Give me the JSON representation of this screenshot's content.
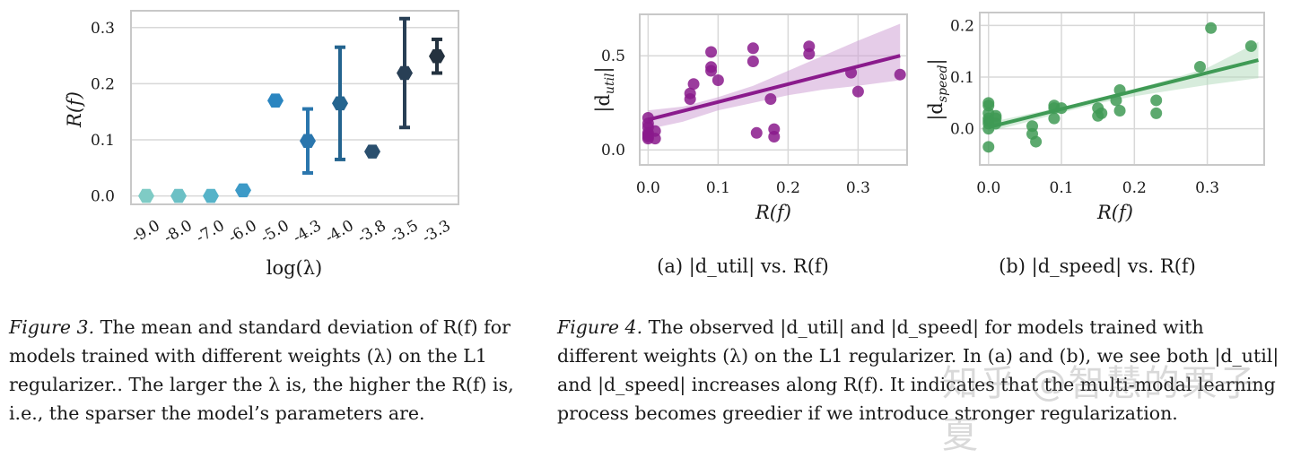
{
  "chart_data": [
    {
      "id": "fig3",
      "type": "scatter",
      "xlabel": "log(λ)",
      "ylabel": "R(f)",
      "categories": [
        "-9.0",
        "-8.0",
        "-7.0",
        "-6.0",
        "-5.0",
        "-4.3",
        "-4.0",
        "-3.8",
        "-3.5",
        "-3.3"
      ],
      "mean": [
        0.0,
        0.0,
        0.0,
        0.01,
        0.17,
        0.098,
        0.165,
        0.079,
        0.219,
        0.249
      ],
      "std": [
        0.0,
        0.0,
        0.0,
        0.0,
        0.0,
        0.057,
        0.1,
        0.0,
        0.097,
        0.03
      ],
      "colors": [
        "#7fcbc5",
        "#6cc0c5",
        "#56b3c8",
        "#3d9ac7",
        "#2a85c0",
        "#2a76ad",
        "#24648f",
        "#2a4f6e",
        "#283f55",
        "#24323f"
      ],
      "ylim": [
        -0.015,
        0.33
      ],
      "yticks": [
        "0.0",
        "0.1",
        "0.2",
        "0.3"
      ],
      "yticks_values": [
        0.0,
        0.1,
        0.2,
        0.3
      ],
      "grid": true
    },
    {
      "id": "fig4a",
      "type": "scatter",
      "xlabel": "R(f)",
      "ylabel": "|d_util|",
      "ylabel_base": "|d",
      "ylabel_sub": "util",
      "subcaption": "(a) |d_util| vs. R(f)",
      "color": "#8a1a8c",
      "band_color": "#cfa3d6",
      "x": [
        0.0,
        0.0,
        0.0,
        0.0,
        0.0,
        0.0,
        0.0,
        0.01,
        0.01,
        0.06,
        0.06,
        0.065,
        0.09,
        0.09,
        0.09,
        0.1,
        0.15,
        0.15,
        0.155,
        0.175,
        0.18,
        0.18,
        0.23,
        0.23,
        0.29,
        0.3,
        0.36
      ],
      "y": [
        0.17,
        0.14,
        0.12,
        0.09,
        0.08,
        0.07,
        0.06,
        0.1,
        0.06,
        0.3,
        0.27,
        0.35,
        0.52,
        0.44,
        0.42,
        0.37,
        0.54,
        0.47,
        0.09,
        0.27,
        0.11,
        0.07,
        0.55,
        0.51,
        0.41,
        0.31,
        0.4
      ],
      "fit": {
        "x": [
          0.0,
          0.36
        ],
        "y": [
          0.16,
          0.5
        ]
      },
      "band": {
        "x": [
          0.0,
          0.05,
          0.1,
          0.15,
          0.2,
          0.25,
          0.3,
          0.36
        ],
        "lower": [
          0.11,
          0.15,
          0.21,
          0.25,
          0.29,
          0.32,
          0.34,
          0.37
        ],
        "upper": [
          0.21,
          0.23,
          0.28,
          0.34,
          0.42,
          0.5,
          0.58,
          0.67
        ]
      },
      "xlim": [
        -0.012,
        0.37
      ],
      "ylim": [
        -0.08,
        0.72
      ],
      "xticks": [
        "0.0",
        "0.1",
        "0.2",
        "0.3"
      ],
      "xticks_values": [
        0.0,
        0.1,
        0.2,
        0.3
      ],
      "yticks": [
        "0.0",
        "0.5"
      ],
      "yticks_values": [
        0.0,
        0.5
      ],
      "grid": true
    },
    {
      "id": "fig4b",
      "type": "scatter",
      "xlabel": "R(f)",
      "ylabel": "|d_speed|",
      "ylabel_base": "|d",
      "ylabel_sub": "speed",
      "subcaption": "(b) |d_speed| vs. R(f)",
      "color": "#3f9a55",
      "band_color": "#b6dcc0",
      "x": [
        0.0,
        0.0,
        0.0,
        0.0,
        0.0,
        0.0,
        0.0,
        0.0,
        0.01,
        0.01,
        0.01,
        0.06,
        0.06,
        0.065,
        0.09,
        0.09,
        0.09,
        0.1,
        0.15,
        0.15,
        0.155,
        0.175,
        0.18,
        0.18,
        0.23,
        0.23,
        0.29,
        0.305,
        0.36
      ],
      "y": [
        0.05,
        0.045,
        0.03,
        0.02,
        0.015,
        0.01,
        0.0,
        -0.035,
        0.025,
        0.02,
        0.01,
        0.005,
        -0.01,
        -0.025,
        0.045,
        0.04,
        0.02,
        0.04,
        0.04,
        0.025,
        0.03,
        0.055,
        0.035,
        0.075,
        0.055,
        0.03,
        0.12,
        0.195,
        0.16
      ],
      "fit": {
        "x": [
          0.0,
          0.37
        ],
        "y": [
          0.003,
          0.133
        ]
      },
      "band": {
        "x": [
          0.0,
          0.05,
          0.1,
          0.15,
          0.2,
          0.25,
          0.3,
          0.37
        ],
        "lower": [
          -0.006,
          0.012,
          0.031,
          0.049,
          0.063,
          0.074,
          0.085,
          0.098
        ],
        "upper": [
          0.012,
          0.027,
          0.042,
          0.058,
          0.077,
          0.096,
          0.118,
          0.168
        ]
      },
      "xlim": [
        -0.012,
        0.378
      ],
      "ylim": [
        -0.07,
        0.225
      ],
      "xticks": [
        "0.0",
        "0.1",
        "0.2",
        "0.3"
      ],
      "xticks_values": [
        0.0,
        0.1,
        0.2,
        0.3
      ],
      "yticks": [
        "0.0",
        "0.1",
        "0.2"
      ],
      "yticks_values": [
        0.0,
        0.1,
        0.2
      ],
      "grid": true
    }
  ],
  "captions": {
    "fig3": {
      "label": "Figure 3.",
      "text": " The mean and standard deviation of R(f) for models trained with different weights (λ) on the L1 regularizer.. The larger the λ is, the higher the R(f) is, i.e., the sparser the model’s parameters are."
    },
    "fig4": {
      "label": "Figure 4.",
      "text": " The observed |d_util| and |d_speed| for models trained with different weights (λ) on the L1 regularizer. In (a) and (b), we see both |d_util| and |d_speed| increases along R(f). It indicates that the multi-modal learning process becomes greedier if we introduce stronger regularization."
    }
  },
  "watermark": "知乎 @智慧的栗子夏"
}
